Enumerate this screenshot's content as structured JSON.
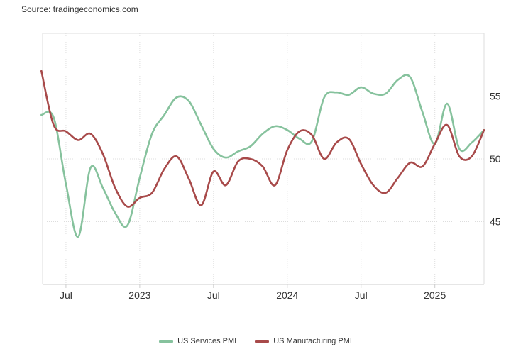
{
  "source_text": "Source: tradingeconomics.com",
  "colors": {
    "services": "#86c29d",
    "manufacturing": "#a84a4a",
    "grid": "#dddddd",
    "axis": "#cccccc"
  },
  "chart_data": {
    "type": "line",
    "title": "",
    "xlabel": "",
    "ylabel": "",
    "ylim": [
      40,
      60
    ],
    "yticks": [
      45,
      50,
      55
    ],
    "grid": true,
    "legend_position": "bottom",
    "x_ticks": [
      {
        "label": "Jul",
        "date": "2022-07"
      },
      {
        "label": "2023",
        "date": "2023-01"
      },
      {
        "label": "Jul",
        "date": "2023-07"
      },
      {
        "label": "2024",
        "date": "2024-01"
      },
      {
        "label": "Jul",
        "date": "2024-07"
      },
      {
        "label": "2025",
        "date": "2025-01"
      }
    ],
    "x": [
      "2022-05",
      "2022-06",
      "2022-07",
      "2022-08",
      "2022-09",
      "2022-10",
      "2022-11",
      "2022-12",
      "2023-01",
      "2023-02",
      "2023-03",
      "2023-04",
      "2023-05",
      "2023-06",
      "2023-07",
      "2023-08",
      "2023-09",
      "2023-10",
      "2023-11",
      "2023-12",
      "2024-01",
      "2024-02",
      "2024-03",
      "2024-04",
      "2024-05",
      "2024-06",
      "2024-07",
      "2024-08",
      "2024-09",
      "2024-10",
      "2024-11",
      "2024-12",
      "2025-01",
      "2025-02",
      "2025-03",
      "2025-04",
      "2025-05"
    ],
    "series": [
      {
        "name": "US Services PMI",
        "color": "#86c29d",
        "values": [
          53.5,
          53.3,
          48.0,
          43.8,
          49.3,
          47.7,
          45.7,
          44.7,
          48.5,
          52.0,
          53.5,
          54.9,
          54.6,
          52.7,
          50.8,
          50.1,
          50.6,
          51.0,
          52.0,
          52.6,
          52.3,
          51.6,
          51.4,
          54.9,
          55.3,
          55.1,
          55.7,
          55.2,
          55.2,
          56.3,
          56.5,
          53.7,
          51.2,
          54.4,
          50.8,
          51.3,
          52.3
        ]
      },
      {
        "name": "US Manufacturing PMI",
        "color": "#a84a4a",
        "values": [
          57.0,
          52.7,
          52.2,
          51.5,
          52.0,
          50.4,
          47.7,
          46.2,
          46.9,
          47.3,
          49.2,
          50.2,
          48.4,
          46.3,
          49.0,
          47.9,
          49.8,
          50.0,
          49.4,
          47.9,
          50.7,
          52.2,
          51.9,
          50.0,
          51.3,
          51.6,
          49.6,
          47.9,
          47.3,
          48.5,
          49.7,
          49.4,
          51.2,
          52.7,
          50.2,
          50.2,
          52.3
        ]
      }
    ]
  }
}
